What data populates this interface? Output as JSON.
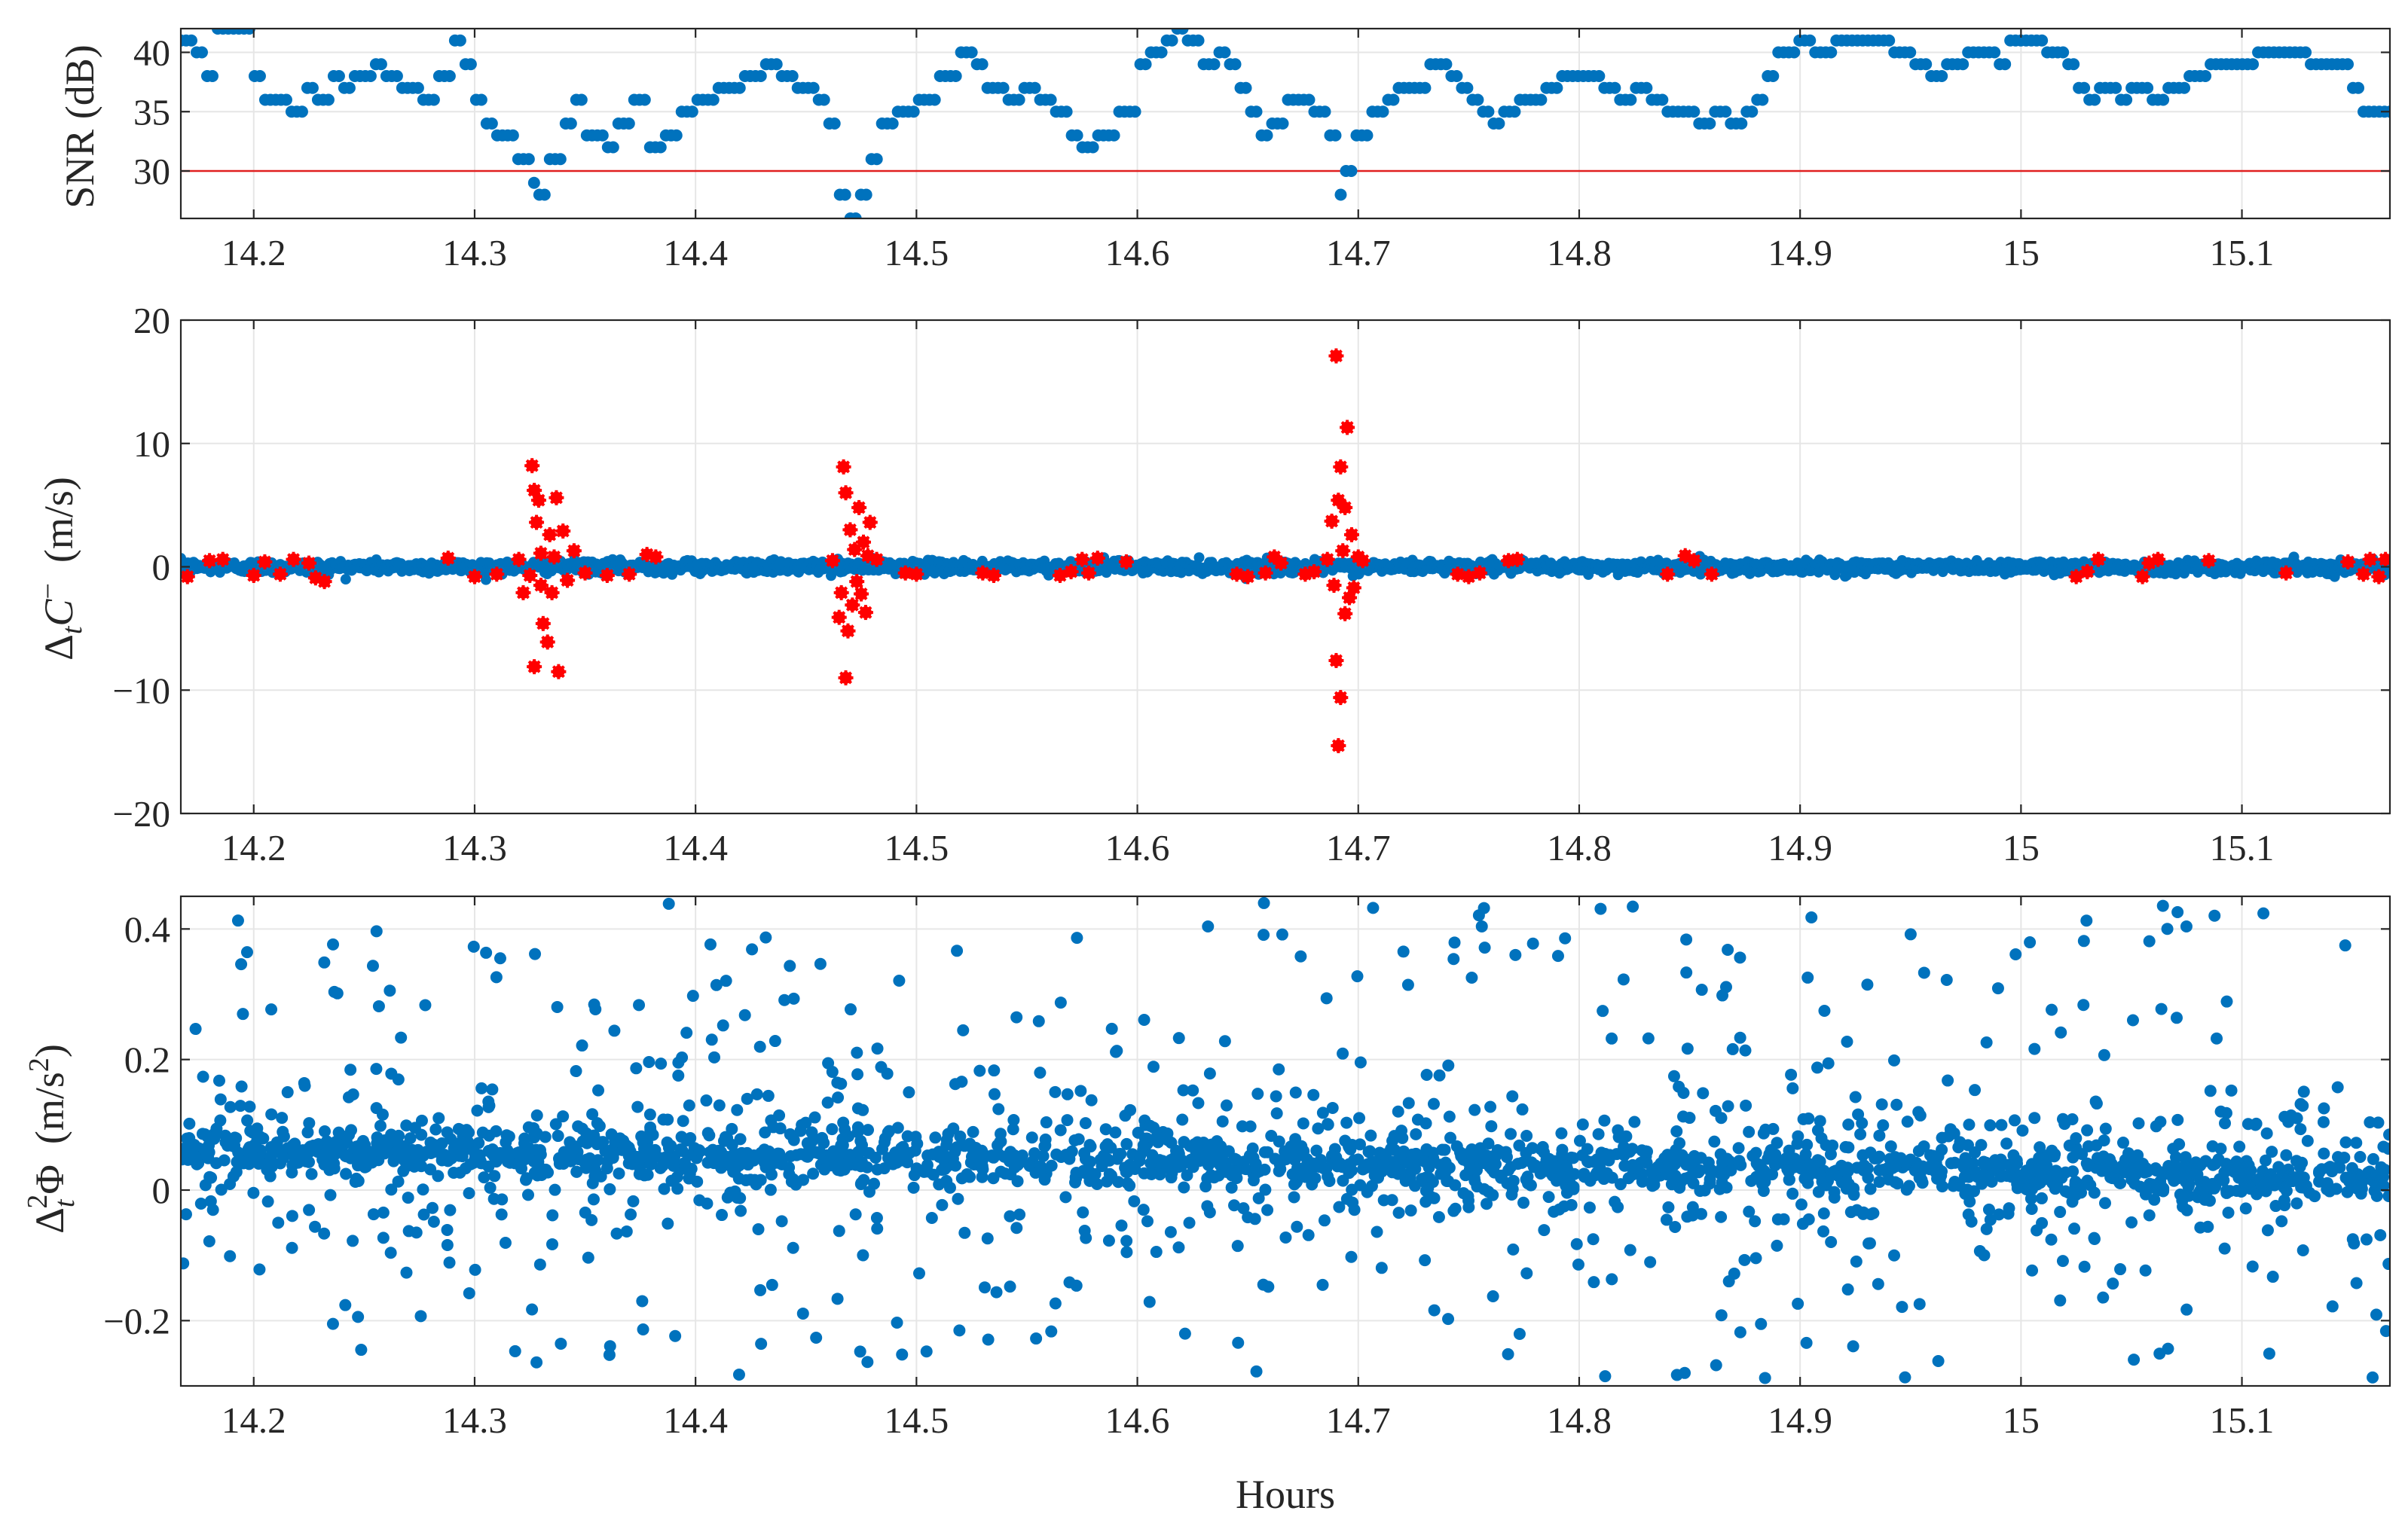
{
  "chart_data": [
    {
      "type": "scatter",
      "panel": "top",
      "ylabel": "SNR (dB)",
      "xlabel": "",
      "xlim": [
        14.167,
        15.167
      ],
      "ylim": [
        26,
        42
      ],
      "xticks": [
        "14.2",
        "14.3",
        "14.4",
        "14.5",
        "14.6",
        "14.7",
        "14.8",
        "14.9",
        "15",
        "15.1"
      ],
      "yticks": [
        "30",
        "35",
        "40"
      ],
      "grid": true,
      "colors": {
        "series": "#0072BD",
        "threshold": "#E02020"
      },
      "threshold_line": 30,
      "series": [
        {
          "marker": "dot",
          "step_data": [
            [
              14.167,
              41
            ],
            [
              14.172,
              40
            ],
            [
              14.178,
              38
            ],
            [
              14.183,
              42
            ],
            [
              14.195,
              42
            ],
            [
              14.2,
              38
            ],
            [
              14.205,
              36
            ],
            [
              14.215,
              35
            ],
            [
              14.222,
              37
            ],
            [
              14.228,
              36
            ],
            [
              14.235,
              38
            ],
            [
              14.24,
              37
            ],
            [
              14.245,
              38
            ],
            [
              14.255,
              39
            ],
            [
              14.26,
              38
            ],
            [
              14.265,
              37
            ],
            [
              14.275,
              36
            ],
            [
              14.283,
              38
            ],
            [
              14.29,
              41
            ],
            [
              14.295,
              39
            ],
            [
              14.3,
              36
            ],
            [
              14.305,
              34
            ],
            [
              14.31,
              33
            ],
            [
              14.318,
              31
            ],
            [
              14.325,
              29
            ],
            [
              14.328,
              28
            ],
            [
              14.333,
              31
            ],
            [
              14.34,
              34
            ],
            [
              14.345,
              36
            ],
            [
              14.35,
              33
            ],
            [
              14.358,
              32
            ],
            [
              14.365,
              34
            ],
            [
              14.372,
              36
            ],
            [
              14.378,
              32
            ],
            [
              14.385,
              33
            ],
            [
              14.392,
              35
            ],
            [
              14.4,
              36
            ],
            [
              14.41,
              37
            ],
            [
              14.42,
              38
            ],
            [
              14.43,
              39
            ],
            [
              14.438,
              38
            ],
            [
              14.445,
              37
            ],
            [
              14.455,
              36
            ],
            [
              14.46,
              34
            ],
            [
              14.465,
              28
            ],
            [
              14.468,
              26
            ],
            [
              14.473,
              28
            ],
            [
              14.478,
              31
            ],
            [
              14.483,
              34
            ],
            [
              14.49,
              35
            ],
            [
              14.5,
              36
            ],
            [
              14.51,
              38
            ],
            [
              14.518,
              40
            ],
            [
              14.525,
              39
            ],
            [
              14.53,
              37
            ],
            [
              14.54,
              36
            ],
            [
              14.548,
              37
            ],
            [
              14.555,
              36
            ],
            [
              14.562,
              35
            ],
            [
              14.568,
              33
            ],
            [
              14.573,
              32
            ],
            [
              14.58,
              33
            ],
            [
              14.585,
              33
            ],
            [
              14.59,
              35
            ],
            [
              14.6,
              39
            ],
            [
              14.605,
              40
            ],
            [
              14.612,
              41
            ],
            [
              14.618,
              42
            ],
            [
              14.622,
              41
            ],
            [
              14.628,
              39
            ],
            [
              14.635,
              40
            ],
            [
              14.64,
              39
            ],
            [
              14.645,
              37
            ],
            [
              14.65,
              35
            ],
            [
              14.655,
              33
            ],
            [
              14.66,
              34
            ],
            [
              14.668,
              36
            ],
            [
              14.675,
              36
            ],
            [
              14.68,
              35
            ],
            [
              14.685,
              33
            ],
            [
              14.69,
              28
            ],
            [
              14.693,
              30
            ],
            [
              14.698,
              33
            ],
            [
              14.705,
              35
            ],
            [
              14.712,
              36
            ],
            [
              14.718,
              37
            ],
            [
              14.725,
              37
            ],
            [
              14.732,
              39
            ],
            [
              14.74,
              38
            ],
            [
              14.745,
              37
            ],
            [
              14.75,
              36
            ],
            [
              14.755,
              35
            ],
            [
              14.76,
              34
            ],
            [
              14.765,
              35
            ],
            [
              14.772,
              36
            ],
            [
              14.778,
              36
            ],
            [
              14.785,
              37
            ],
            [
              14.79,
              38
            ],
            [
              14.8,
              38
            ],
            [
              14.81,
              37
            ],
            [
              14.818,
              36
            ],
            [
              14.825,
              37
            ],
            [
              14.832,
              36
            ],
            [
              14.838,
              35
            ],
            [
              14.845,
              35
            ],
            [
              14.852,
              34
            ],
            [
              14.86,
              35
            ],
            [
              14.868,
              34
            ],
            [
              14.875,
              35
            ],
            [
              14.88,
              36
            ],
            [
              14.885,
              38
            ],
            [
              14.89,
              40
            ],
            [
              14.898,
              41
            ],
            [
              14.905,
              40
            ],
            [
              14.915,
              41
            ],
            [
              14.935,
              41
            ],
            [
              14.942,
              40
            ],
            [
              14.95,
              39
            ],
            [
              14.958,
              38
            ],
            [
              14.965,
              39
            ],
            [
              14.975,
              40
            ],
            [
              14.985,
              40
            ],
            [
              14.99,
              39
            ],
            [
              14.995,
              41
            ],
            [
              15.005,
              41
            ],
            [
              15.01,
              40
            ],
            [
              15.02,
              39
            ],
            [
              15.025,
              37
            ],
            [
              15.03,
              36
            ],
            [
              15.035,
              37
            ],
            [
              15.045,
              36
            ],
            [
              15.05,
              37
            ],
            [
              15.058,
              36
            ],
            [
              15.065,
              37
            ],
            [
              15.075,
              38
            ],
            [
              15.085,
              39
            ],
            [
              15.095,
              39
            ],
            [
              15.105,
              40
            ],
            [
              15.12,
              40
            ],
            [
              15.13,
              39
            ],
            [
              15.145,
              39
            ],
            [
              15.15,
              37
            ],
            [
              15.155,
              35
            ],
            [
              15.167,
              35
            ]
          ]
        }
      ]
    },
    {
      "type": "scatter",
      "panel": "middle",
      "ylabel": "ΔtC− (m/s)",
      "xlabel": "",
      "xlim": [
        14.167,
        15.167
      ],
      "ylim": [
        -20,
        20
      ],
      "xticks": [
        "14.2",
        "14.3",
        "14.4",
        "14.5",
        "14.6",
        "14.7",
        "14.8",
        "14.9",
        "15",
        "15.1"
      ],
      "yticks": [
        "−20",
        "−10",
        "0",
        "10",
        "20"
      ],
      "grid": true,
      "colors": {
        "normal": "#0072BD",
        "outlier": "#FF0000"
      },
      "series": [
        {
          "name": "",
          "marker": "dot",
          "spread": 0.4
        },
        {
          "name": "",
          "marker": "star",
          "outliers": [
            [
              14.17,
              -0.8
            ],
            [
              14.18,
              0.5
            ],
            [
              14.186,
              0.6
            ],
            [
              14.2,
              -0.7
            ],
            [
              14.205,
              0.4
            ],
            [
              14.212,
              -0.6
            ],
            [
              14.218,
              0.6
            ],
            [
              14.225,
              0.3
            ],
            [
              14.228,
              -0.9
            ],
            [
              14.232,
              -1.2
            ],
            [
              14.288,
              0.7
            ],
            [
              14.3,
              -0.8
            ],
            [
              14.31,
              -0.6
            ],
            [
              14.32,
              0.6
            ],
            [
              14.326,
              8.2
            ],
            [
              14.327,
              6.2
            ],
            [
              14.328,
              3.6
            ],
            [
              14.329,
              5.4
            ],
            [
              14.33,
              1.1
            ],
            [
              14.33,
              -1.5
            ],
            [
              14.331,
              -4.6
            ],
            [
              14.327,
              -8.1
            ],
            [
              14.333,
              -6.1
            ],
            [
              14.334,
              2.6
            ],
            [
              14.335,
              -2.1
            ],
            [
              14.336,
              0.8
            ],
            [
              14.337,
              5.6
            ],
            [
              14.338,
              -8.5
            ],
            [
              14.34,
              2.9
            ],
            [
              14.325,
              -0.7
            ],
            [
              14.322,
              -2.1
            ],
            [
              14.342,
              -1.1
            ],
            [
              14.345,
              1.3
            ],
            [
              14.35,
              -0.5
            ],
            [
              14.36,
              -0.7
            ],
            [
              14.37,
              -0.6
            ],
            [
              14.378,
              1.0
            ],
            [
              14.382,
              0.8
            ],
            [
              14.462,
              0.5
            ],
            [
              14.467,
              8.1
            ],
            [
              14.468,
              6.0
            ],
            [
              14.468,
              -9.0
            ],
            [
              14.469,
              -5.2
            ],
            [
              14.47,
              3.0
            ],
            [
              14.471,
              -3.1
            ],
            [
              14.472,
              1.4
            ],
            [
              14.473,
              -1.2
            ],
            [
              14.474,
              4.8
            ],
            [
              14.475,
              -2.2
            ],
            [
              14.476,
              2.0
            ],
            [
              14.477,
              -3.7
            ],
            [
              14.478,
              0.9
            ],
            [
              14.479,
              3.6
            ],
            [
              14.466,
              -2.1
            ],
            [
              14.465,
              -4.1
            ],
            [
              14.482,
              0.6
            ],
            [
              14.495,
              -0.5
            ],
            [
              14.5,
              -0.6
            ],
            [
              14.53,
              -0.5
            ],
            [
              14.535,
              -0.7
            ],
            [
              14.565,
              -0.7
            ],
            [
              14.57,
              -0.4
            ],
            [
              14.575,
              0.6
            ],
            [
              14.578,
              -0.5
            ],
            [
              14.582,
              0.7
            ],
            [
              14.595,
              0.4
            ],
            [
              14.645,
              -0.6
            ],
            [
              14.65,
              -0.8
            ],
            [
              14.658,
              -0.5
            ],
            [
              14.662,
              0.8
            ],
            [
              14.665,
              0.3
            ],
            [
              14.676,
              -0.6
            ],
            [
              14.68,
              -0.4
            ],
            [
              14.686,
              0.6
            ],
            [
              14.688,
              3.7
            ],
            [
              14.689,
              -1.5
            ],
            [
              14.69,
              17.1
            ],
            [
              14.69,
              -7.6
            ],
            [
              14.691,
              5.4
            ],
            [
              14.691,
              -14.5
            ],
            [
              14.692,
              -10.6
            ],
            [
              14.692,
              8.1
            ],
            [
              14.693,
              1.3
            ],
            [
              14.694,
              -3.8
            ],
            [
              14.694,
              4.8
            ],
            [
              14.695,
              11.3
            ],
            [
              14.696,
              -2.5
            ],
            [
              14.697,
              2.6
            ],
            [
              14.698,
              -1.7
            ],
            [
              14.7,
              0.8
            ],
            [
              14.702,
              0.5
            ],
            [
              14.745,
              -0.6
            ],
            [
              14.75,
              -0.8
            ],
            [
              14.755,
              -0.5
            ],
            [
              14.768,
              0.5
            ],
            [
              14.772,
              0.6
            ],
            [
              14.84,
              -0.6
            ],
            [
              14.848,
              0.9
            ],
            [
              14.852,
              0.5
            ],
            [
              14.86,
              -0.6
            ],
            [
              15.025,
              -0.8
            ],
            [
              15.03,
              -0.4
            ],
            [
              15.035,
              0.6
            ],
            [
              15.055,
              -0.8
            ],
            [
              15.058,
              0.3
            ],
            [
              15.062,
              0.6
            ],
            [
              15.085,
              0.5
            ],
            [
              15.12,
              -0.5
            ],
            [
              15.148,
              0.4
            ],
            [
              15.155,
              -0.6
            ],
            [
              15.158,
              0.6
            ],
            [
              15.162,
              -0.8
            ],
            [
              15.165,
              0.6
            ]
          ]
        }
      ]
    },
    {
      "type": "scatter",
      "panel": "bottom",
      "ylabel": "Δ²tΦ (m/s²)",
      "xlabel": "Hours",
      "xlim": [
        14.167,
        15.167
      ],
      "ylim": [
        -0.3,
        0.45
      ],
      "xticks": [
        "14.2",
        "14.3",
        "14.4",
        "14.5",
        "14.6",
        "14.7",
        "14.8",
        "14.9",
        "15",
        "15.1"
      ],
      "yticks": [
        "−0.2",
        "0",
        "0.2",
        "0.4"
      ],
      "grid": true,
      "colors": {
        "series": "#0072BD"
      },
      "series": [
        {
          "name": "",
          "marker": "dot",
          "center_start": 0.06,
          "center_end": 0.02,
          "band": 0.04,
          "scatter_range": [
            -0.29,
            0.44
          ],
          "n_points": 2400
        }
      ]
    }
  ]
}
